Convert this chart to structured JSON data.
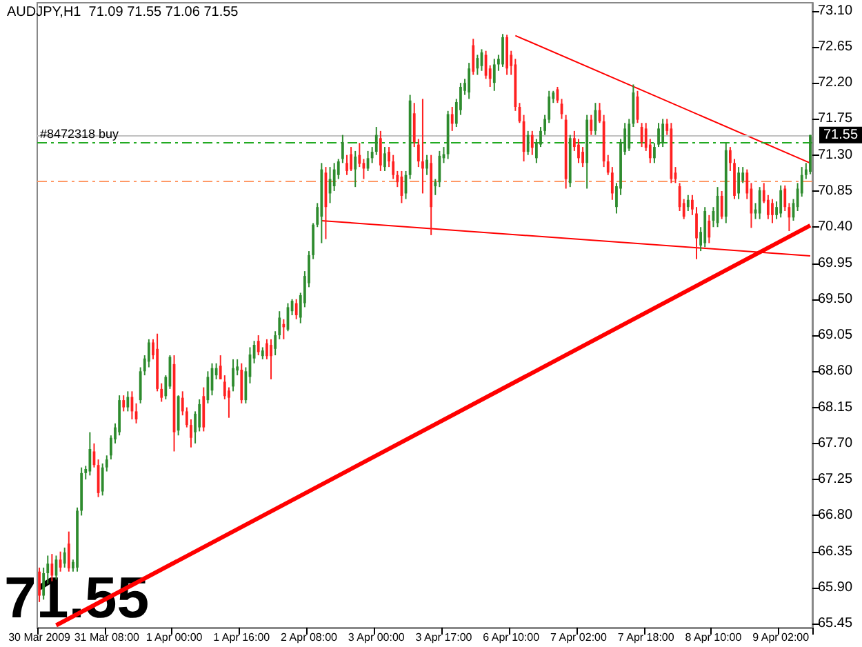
{
  "chart_data": {
    "type": "candlestick",
    "title": "AUDJPY,H1  71.09 71.55 71.06 71.55",
    "annotations": [
      "71.55"
    ],
    "categories": [
      "30 Mar 2009",
      null,
      null,
      null,
      null,
      null,
      null,
      null,
      null,
      null,
      null,
      null,
      null,
      null,
      null,
      null,
      "31 Mar 08:00",
      null,
      null,
      null,
      null,
      null,
      null,
      null,
      null,
      null,
      null,
      null,
      null,
      null,
      null,
      null,
      "1 Apr 00:00",
      null,
      null,
      null,
      null,
      null,
      null,
      null,
      null,
      null,
      null,
      null,
      null,
      null,
      null,
      null,
      "1 Apr 16:00",
      null,
      null,
      null,
      null,
      null,
      null,
      null,
      null,
      null,
      null,
      null,
      null,
      null,
      null,
      null,
      "2 Apr 08:00",
      null,
      null,
      null,
      null,
      null,
      null,
      null,
      null,
      null,
      null,
      null,
      null,
      null,
      null,
      null,
      "3 Apr 00:00",
      null,
      null,
      null,
      null,
      null,
      null,
      null,
      null,
      null,
      null,
      null,
      null,
      null,
      null,
      null,
      "3 Apr 17:00",
      null,
      null,
      null,
      null,
      null,
      null,
      null,
      null,
      null,
      null,
      null,
      null,
      null,
      null,
      null,
      "6 Apr 10:00",
      null,
      null,
      null,
      null,
      null,
      null,
      null,
      null,
      null,
      null,
      null,
      null,
      null,
      null,
      null,
      "7 Apr 02:00",
      null,
      null,
      null,
      null,
      null,
      null,
      null,
      null,
      null,
      null,
      null,
      null,
      null,
      null,
      null,
      "7 Apr 18:00",
      null,
      null,
      null,
      null,
      null,
      null,
      null,
      null,
      null,
      null,
      null,
      null,
      null,
      null,
      null,
      "8 Apr 10:00",
      null,
      null,
      null,
      null,
      null,
      null,
      null,
      null,
      null,
      null,
      null,
      null,
      null,
      null,
      null,
      "9 Apr 02:00",
      null,
      null,
      null,
      null,
      null,
      null,
      null
    ],
    "ohlc": [
      [
        66.1,
        66.15,
        65.72,
        65.8
      ],
      [
        65.8,
        66.15,
        65.75,
        66.08
      ],
      [
        66.08,
        66.3,
        65.95,
        66.2
      ],
      [
        66.2,
        66.32,
        65.98,
        66.05
      ],
      [
        66.05,
        66.3,
        66.0,
        66.25
      ],
      [
        66.25,
        66.35,
        66.1,
        66.15
      ],
      [
        66.2,
        66.4,
        66.15,
        66.34
      ],
      [
        66.45,
        66.6,
        66.1,
        66.14
      ],
      [
        66.14,
        66.25,
        66.1,
        66.22
      ],
      [
        66.15,
        66.9,
        66.1,
        66.86
      ],
      [
        66.86,
        67.4,
        66.8,
        67.33
      ],
      [
        67.33,
        67.42,
        67.25,
        67.38
      ],
      [
        67.35,
        67.84,
        67.3,
        67.63
      ],
      [
        67.6,
        67.7,
        67.4,
        67.43
      ],
      [
        67.43,
        67.5,
        67.03,
        67.08
      ],
      [
        67.1,
        67.45,
        67.05,
        67.4
      ],
      [
        67.4,
        67.55,
        67.35,
        67.5
      ],
      [
        67.55,
        67.8,
        67.5,
        67.77
      ],
      [
        67.75,
        67.95,
        67.7,
        67.9
      ],
      [
        67.84,
        68.3,
        67.8,
        68.24
      ],
      [
        68.24,
        68.3,
        68.1,
        68.15
      ],
      [
        68.15,
        68.35,
        68.1,
        68.28
      ],
      [
        68.28,
        68.35,
        68.0,
        68.1
      ],
      [
        68.1,
        68.2,
        67.95,
        68.0
      ],
      [
        68.24,
        68.65,
        68.2,
        68.6
      ],
      [
        68.6,
        68.8,
        68.55,
        68.76
      ],
      [
        68.72,
        69.0,
        68.65,
        68.96
      ],
      [
        68.96,
        69.0,
        68.75,
        68.8
      ],
      [
        68.88,
        69.07,
        68.35,
        68.38
      ],
      [
        68.38,
        68.45,
        68.22,
        68.27
      ],
      [
        68.29,
        68.55,
        68.25,
        68.53
      ],
      [
        68.41,
        68.8,
        68.38,
        68.78
      ],
      [
        68.69,
        68.8,
        67.6,
        67.84
      ],
      [
        67.86,
        68.3,
        67.8,
        68.29
      ],
      [
        68.27,
        68.35,
        68.05,
        68.1
      ],
      [
        68.1,
        68.15,
        67.9,
        67.93
      ],
      [
        67.93,
        68.0,
        67.65,
        67.77
      ],
      [
        67.84,
        68.1,
        67.7,
        68.07
      ],
      [
        67.9,
        68.25,
        67.85,
        68.19
      ],
      [
        68.29,
        68.4,
        67.85,
        67.9
      ],
      [
        68.24,
        68.6,
        68.2,
        68.53
      ],
      [
        68.36,
        68.7,
        68.3,
        68.64
      ],
      [
        68.55,
        68.7,
        68.5,
        68.64
      ],
      [
        68.67,
        68.8,
        68.5,
        68.5
      ],
      [
        68.47,
        68.55,
        68.25,
        68.29
      ],
      [
        68.36,
        68.4,
        68.02,
        68.27
      ],
      [
        68.41,
        68.75,
        68.35,
        68.64
      ],
      [
        68.61,
        68.75,
        68.55,
        68.66
      ],
      [
        68.62,
        68.7,
        68.2,
        68.24
      ],
      [
        68.24,
        68.65,
        68.2,
        68.6
      ],
      [
        68.53,
        68.9,
        68.45,
        68.81
      ],
      [
        68.76,
        68.98,
        68.7,
        68.93
      ],
      [
        68.98,
        69.05,
        68.8,
        68.84
      ],
      [
        68.79,
        68.9,
        68.75,
        68.86
      ],
      [
        68.95,
        69.0,
        68.75,
        68.79
      ],
      [
        68.93,
        69.0,
        68.5,
        68.79
      ],
      [
        68.88,
        69.1,
        68.8,
        69.05
      ],
      [
        69.05,
        69.35,
        69.0,
        69.27
      ],
      [
        69.19,
        69.25,
        69.0,
        69.15
      ],
      [
        69.12,
        69.45,
        69.1,
        69.4
      ],
      [
        69.35,
        69.5,
        69.3,
        69.48
      ],
      [
        69.45,
        69.5,
        69.25,
        69.3
      ],
      [
        69.27,
        69.58,
        69.2,
        69.55
      ],
      [
        69.45,
        69.85,
        69.4,
        69.79
      ],
      [
        69.7,
        70.1,
        69.65,
        70.05
      ],
      [
        70.05,
        70.45,
        70.0,
        70.43
      ],
      [
        70.43,
        70.7,
        70.4,
        70.65
      ],
      [
        70.53,
        71.2,
        70.2,
        71.12
      ],
      [
        71.08,
        71.15,
        70.25,
        70.65
      ],
      [
        70.82,
        71.15,
        70.7,
        71.0
      ],
      [
        70.91,
        71.2,
        70.85,
        71.12
      ],
      [
        71.05,
        71.25,
        71.0,
        71.22
      ],
      [
        71.25,
        71.55,
        71.2,
        71.46
      ],
      [
        71.2,
        71.3,
        71.05,
        71.1
      ],
      [
        71.31,
        71.4,
        71.1,
        71.12
      ],
      [
        71.12,
        71.35,
        70.9,
        71.28
      ],
      [
        71.3,
        71.45,
        71.15,
        71.19
      ],
      [
        71.2,
        71.25,
        71.0,
        71.13
      ],
      [
        71.13,
        71.35,
        71.1,
        71.26
      ],
      [
        71.26,
        71.4,
        71.2,
        71.34
      ],
      [
        71.34,
        71.65,
        71.3,
        71.55
      ],
      [
        71.51,
        71.6,
        71.1,
        71.17
      ],
      [
        71.15,
        71.4,
        71.1,
        71.32
      ],
      [
        71.34,
        71.4,
        71.15,
        71.22
      ],
      [
        71.22,
        71.3,
        71.0,
        71.05
      ],
      [
        71.05,
        71.1,
        70.9,
        70.96
      ],
      [
        71.03,
        71.1,
        70.7,
        70.79
      ],
      [
        70.82,
        71.1,
        70.75,
        71.05
      ],
      [
        71.05,
        72.05,
        71.0,
        71.98
      ],
      [
        71.82,
        71.95,
        71.4,
        71.46
      ],
      [
        71.43,
        71.5,
        71.15,
        71.22
      ],
      [
        71.22,
        72.0,
        70.82,
        71.13
      ],
      [
        71.13,
        71.3,
        71.05,
        71.24
      ],
      [
        71.2,
        71.3,
        70.3,
        70.65
      ],
      [
        70.91,
        71.0,
        70.8,
        70.96
      ],
      [
        70.96,
        71.35,
        70.9,
        71.29
      ],
      [
        71.26,
        71.4,
        71.2,
        71.31
      ],
      [
        71.31,
        71.85,
        71.25,
        71.81
      ],
      [
        71.81,
        71.9,
        71.6,
        71.69
      ],
      [
        71.69,
        72.0,
        71.65,
        71.96
      ],
      [
        71.86,
        72.2,
        71.8,
        72.15
      ],
      [
        72.1,
        72.25,
        72.05,
        72.2
      ],
      [
        72.08,
        72.45,
        72.0,
        72.38
      ],
      [
        72.67,
        72.75,
        72.3,
        72.34
      ],
      [
        72.38,
        72.55,
        72.3,
        72.51
      ],
      [
        72.41,
        72.62,
        72.35,
        72.58
      ],
      [
        72.55,
        72.6,
        72.25,
        72.29
      ],
      [
        72.38,
        72.42,
        72.15,
        72.25
      ],
      [
        72.2,
        72.5,
        72.1,
        72.43
      ],
      [
        72.43,
        72.55,
        72.35,
        72.5
      ],
      [
        72.43,
        72.81,
        72.4,
        72.77
      ],
      [
        72.77,
        72.8,
        72.3,
        72.38
      ],
      [
        72.55,
        72.6,
        72.3,
        72.41
      ],
      [
        72.43,
        72.5,
        71.85,
        71.9
      ],
      [
        71.9,
        71.95,
        71.7,
        71.72
      ],
      [
        71.72,
        71.8,
        71.22,
        71.34
      ],
      [
        71.34,
        71.6,
        71.3,
        71.55
      ],
      [
        71.55,
        71.6,
        71.3,
        71.39
      ],
      [
        71.26,
        71.5,
        71.2,
        71.45
      ],
      [
        71.43,
        71.65,
        71.4,
        71.6
      ],
      [
        71.6,
        71.8,
        71.55,
        71.75
      ],
      [
        71.74,
        72.1,
        71.7,
        72.03
      ],
      [
        72.0,
        72.1,
        71.95,
        72.08
      ],
      [
        72.12,
        72.15,
        71.95,
        71.98
      ],
      [
        71.94,
        72.0,
        71.75,
        71.81
      ],
      [
        71.74,
        71.8,
        70.88,
        71.0
      ],
      [
        70.95,
        71.55,
        70.9,
        71.51
      ],
      [
        71.51,
        71.6,
        71.35,
        71.4
      ],
      [
        71.43,
        71.5,
        71.2,
        71.26
      ],
      [
        71.34,
        71.4,
        71.15,
        71.2
      ],
      [
        71.2,
        71.8,
        70.88,
        71.74
      ],
      [
        71.74,
        71.8,
        71.55,
        71.6
      ],
      [
        71.6,
        71.95,
        71.55,
        71.86
      ],
      [
        71.86,
        71.95,
        71.7,
        71.72
      ],
      [
        71.72,
        71.8,
        71.15,
        71.22
      ],
      [
        71.22,
        71.3,
        71.05,
        71.08
      ],
      [
        71.08,
        71.15,
        70.74,
        70.82
      ],
      [
        70.65,
        70.95,
        70.57,
        70.91
      ],
      [
        70.88,
        71.5,
        70.8,
        71.46
      ],
      [
        71.34,
        71.7,
        71.3,
        71.63
      ],
      [
        71.38,
        71.75,
        71.35,
        71.69
      ],
      [
        71.69,
        72.18,
        71.65,
        72.08
      ],
      [
        72.03,
        72.1,
        71.7,
        71.74
      ],
      [
        71.65,
        71.7,
        71.4,
        71.46
      ],
      [
        71.63,
        71.7,
        71.35,
        71.39
      ],
      [
        71.43,
        71.5,
        71.2,
        71.26
      ],
      [
        71.26,
        71.45,
        71.2,
        71.4
      ],
      [
        71.43,
        71.7,
        71.4,
        71.63
      ],
      [
        71.46,
        71.75,
        71.4,
        71.69
      ],
      [
        71.69,
        71.75,
        71.55,
        71.6
      ],
      [
        71.63,
        71.7,
        70.95,
        71.0
      ],
      [
        71.08,
        71.15,
        70.95,
        71.0
      ],
      [
        70.91,
        70.95,
        70.6,
        70.65
      ],
      [
        70.7,
        70.75,
        70.5,
        70.53
      ],
      [
        70.65,
        70.8,
        70.6,
        70.74
      ],
      [
        70.74,
        70.8,
        70.55,
        70.62
      ],
      [
        70.57,
        70.65,
        70.0,
        70.26
      ],
      [
        70.17,
        70.4,
        70.1,
        70.34
      ],
      [
        70.2,
        70.65,
        70.15,
        70.6
      ],
      [
        70.48,
        70.55,
        70.2,
        70.27
      ],
      [
        70.48,
        70.65,
        70.4,
        70.6
      ],
      [
        70.45,
        70.9,
        70.4,
        70.79
      ],
      [
        70.79,
        70.85,
        70.5,
        70.53
      ],
      [
        70.53,
        71.45,
        70.45,
        71.36
      ],
      [
        71.36,
        71.4,
        71.1,
        71.2
      ],
      [
        71.2,
        71.25,
        70.75,
        70.79
      ],
      [
        70.82,
        71.15,
        70.75,
        71.08
      ],
      [
        70.98,
        71.15,
        70.95,
        71.08
      ],
      [
        71.08,
        71.12,
        70.75,
        70.82
      ],
      [
        70.88,
        70.95,
        70.39,
        70.57
      ],
      [
        70.57,
        70.7,
        70.5,
        70.62
      ],
      [
        70.57,
        70.9,
        70.5,
        70.86
      ],
      [
        70.86,
        70.95,
        70.7,
        70.72
      ],
      [
        70.74,
        70.8,
        70.5,
        70.55
      ],
      [
        70.7,
        70.75,
        70.45,
        70.55
      ],
      [
        70.55,
        70.72,
        70.5,
        70.65
      ],
      [
        70.57,
        70.92,
        70.52,
        70.86
      ],
      [
        70.88,
        70.92,
        70.6,
        70.65
      ],
      [
        70.65,
        70.7,
        70.35,
        70.52
      ],
      [
        70.52,
        70.75,
        70.48,
        70.7
      ],
      [
        70.65,
        70.95,
        70.6,
        70.88
      ],
      [
        70.82,
        71.15,
        70.78,
        71.05
      ],
      [
        71.05,
        71.2,
        71.0,
        71.12
      ],
      [
        71.09,
        71.55,
        71.06,
        71.55
      ]
    ],
    "colors": [
      "#ff2020",
      "#2e8b2e",
      "#2e8b2e",
      "#ff2020",
      "#2e8b2e",
      "#ff2020",
      "#2e8b2e",
      "#ff2020",
      "#2e8b2e",
      "#2e8b2e",
      "#2e8b2e",
      "#2e8b2e",
      "#2e8b2e",
      "#ff2020",
      "#ff2020",
      "#2e8b2e",
      "#2e8b2e",
      "#2e8b2e",
      "#2e8b2e",
      "#2e8b2e",
      "#ff2020",
      "#2e8b2e",
      "#ff2020",
      "#ff2020",
      "#2e8b2e",
      "#2e8b2e",
      "#2e8b2e",
      "#ff2020",
      "#ff2020",
      "#ff2020",
      "#2e8b2e",
      "#2e8b2e",
      "#ff2020",
      "#2e8b2e",
      "#ff2020",
      "#ff2020",
      "#ff2020",
      "#2e8b2e",
      "#2e8b2e",
      "#ff2020",
      "#2e8b2e",
      "#2e8b2e",
      "#2e8b2e",
      "#ff2020",
      "#ff2020",
      "#ff2020",
      "#2e8b2e",
      "#2e8b2e",
      "#ff2020",
      "#2e8b2e",
      "#2e8b2e",
      "#2e8b2e",
      "#ff2020",
      "#2e8b2e",
      "#ff2020",
      "#ff2020",
      "#2e8b2e",
      "#2e8b2e",
      "#ff2020",
      "#2e8b2e",
      "#2e8b2e",
      "#ff2020",
      "#2e8b2e",
      "#2e8b2e",
      "#2e8b2e",
      "#2e8b2e",
      "#2e8b2e",
      "#2e8b2e",
      "#ff2020",
      "#2e8b2e",
      "#2e8b2e",
      "#2e8b2e",
      "#2e8b2e",
      "#ff2020",
      "#ff2020",
      "#2e8b2e",
      "#ff2020",
      "#ff2020",
      "#2e8b2e",
      "#2e8b2e",
      "#2e8b2e",
      "#ff2020",
      "#2e8b2e",
      "#ff2020",
      "#ff2020",
      "#ff2020",
      "#ff2020",
      "#2e8b2e",
      "#2e8b2e",
      "#ff2020",
      "#ff2020",
      "#ff2020",
      "#2e8b2e",
      "#ff2020",
      "#2e8b2e",
      "#2e8b2e",
      "#2e8b2e",
      "#2e8b2e",
      "#ff2020",
      "#2e8b2e",
      "#2e8b2e",
      "#2e8b2e",
      "#2e8b2e",
      "#ff2020",
      "#2e8b2e",
      "#2e8b2e",
      "#ff2020",
      "#ff2020",
      "#2e8b2e",
      "#2e8b2e",
      "#2e8b2e",
      "#ff2020",
      "#ff2020",
      "#ff2020",
      "#ff2020",
      "#ff2020",
      "#2e8b2e",
      "#ff2020",
      "#2e8b2e",
      "#2e8b2e",
      "#2e8b2e",
      "#2e8b2e",
      "#2e8b2e",
      "#ff2020",
      "#ff2020",
      "#ff2020",
      "#2e8b2e",
      "#ff2020",
      "#ff2020",
      "#ff2020",
      "#2e8b2e",
      "#ff2020",
      "#2e8b2e",
      "#ff2020",
      "#ff2020",
      "#ff2020",
      "#ff2020",
      "#2e8b2e",
      "#2e8b2e",
      "#2e8b2e",
      "#2e8b2e",
      "#2e8b2e",
      "#ff2020",
      "#ff2020",
      "#ff2020",
      "#ff2020",
      "#2e8b2e",
      "#2e8b2e",
      "#2e8b2e",
      "#ff2020",
      "#ff2020",
      "#ff2020",
      "#ff2020",
      "#ff2020",
      "#2e8b2e",
      "#ff2020",
      "#ff2020",
      "#2e8b2e",
      "#2e8b2e",
      "#ff2020",
      "#2e8b2e",
      "#2e8b2e",
      "#ff2020",
      "#2e8b2e",
      "#ff2020",
      "#ff2020",
      "#2e8b2e",
      "#2e8b2e",
      "#ff2020",
      "#ff2020",
      "#2e8b2e",
      "#2e8b2e",
      "#ff2020",
      "#ff2020",
      "#ff2020",
      "#2e8b2e",
      "#2e8b2e",
      "#ff2020",
      "#ff2020",
      "#2e8b2e",
      "#2e8b2e",
      "#2e8b2e",
      "#2e8b2e",
      "#2e8b2e"
    ],
    "series": [
      {
        "type": "line",
        "color": "#ff0000",
        "values": [
          null,
          null,
          null,
          null,
          65.43,
          null,
          null,
          null,
          null,
          null,
          null,
          null,
          null,
          null,
          null,
          null,
          null,
          null,
          null,
          null,
          null,
          null,
          null,
          null,
          null,
          null,
          null,
          null,
          null,
          null,
          null,
          null,
          null,
          null,
          null,
          null,
          null,
          null,
          null,
          null,
          null,
          null,
          null,
          null,
          null,
          null,
          null,
          null,
          null,
          null,
          null,
          null,
          null,
          null,
          null,
          null,
          null,
          null,
          null,
          null,
          null,
          null,
          null,
          null,
          null,
          null,
          null,
          null,
          null,
          null,
          null,
          null,
          null,
          null,
          null,
          null,
          null,
          null,
          null,
          null,
          null,
          null,
          null,
          null,
          null,
          null,
          null,
          null,
          null,
          null,
          null,
          null,
          null,
          null,
          null,
          null,
          null,
          null,
          null,
          null,
          null,
          null,
          null,
          null,
          null,
          null,
          null,
          null,
          null,
          null,
          null,
          null,
          null,
          null,
          null,
          null,
          null,
          null,
          null,
          null,
          null,
          null,
          null,
          null,
          null,
          null,
          null,
          null,
          null,
          null,
          null,
          null,
          null,
          null,
          null,
          null,
          null,
          null,
          null,
          null,
          null,
          null,
          null,
          null,
          null,
          null,
          null,
          null,
          null,
          null,
          null,
          null,
          null,
          null,
          null,
          null,
          null,
          null,
          null,
          null,
          null,
          null,
          null,
          null,
          null,
          null,
          null,
          null,
          null,
          null,
          null,
          null,
          null,
          null,
          null,
          null,
          null,
          null,
          null,
          null,
          null,
          null,
          null,
          70.42
        ]
      },
      {
        "type": "line",
        "color": "#ff0000",
        "values": [
          null,
          null,
          null,
          null,
          null,
          null,
          null,
          null,
          null,
          null,
          null,
          null,
          null,
          null,
          null,
          null,
          null,
          null,
          null,
          null,
          null,
          null,
          null,
          null,
          null,
          null,
          null,
          null,
          null,
          null,
          null,
          null,
          null,
          null,
          null,
          null,
          null,
          null,
          null,
          null,
          null,
          null,
          null,
          null,
          null,
          null,
          null,
          null,
          null,
          null,
          null,
          null,
          null,
          null,
          null,
          null,
          null,
          null,
          null,
          null,
          null,
          null,
          null,
          null,
          null,
          null,
          null,
          null,
          null,
          null,
          null,
          null,
          null,
          null,
          null,
          null,
          null,
          null,
          null,
          null,
          null,
          null,
          null,
          null,
          null,
          null,
          null,
          null,
          null,
          null,
          null,
          null,
          null,
          null,
          null,
          null,
          null,
          null,
          null,
          null,
          null,
          null,
          null,
          null,
          null,
          null,
          null,
          null,
          null,
          null,
          null,
          null,
          null,
          72.79,
          null,
          null,
          null,
          null,
          null,
          null,
          null,
          null,
          null,
          null,
          null,
          null,
          null,
          null,
          null,
          null,
          null,
          null,
          null,
          null,
          null,
          null,
          null,
          null,
          null,
          null,
          null,
          null,
          null,
          null,
          null,
          null,
          null,
          null,
          null,
          null,
          null,
          null,
          null,
          null,
          null,
          null,
          null,
          null,
          null,
          null,
          null,
          null,
          null,
          null,
          null,
          null,
          null,
          null,
          null,
          null,
          null,
          null,
          null,
          null,
          null,
          null,
          null,
          null,
          null,
          null,
          null,
          null,
          null,
          71.2
        ]
      },
      {
        "type": "line",
        "color": "#ff0000",
        "values": [
          null,
          null,
          null,
          null,
          null,
          null,
          null,
          null,
          null,
          null,
          null,
          null,
          null,
          null,
          null,
          null,
          null,
          null,
          null,
          null,
          null,
          null,
          null,
          null,
          null,
          null,
          null,
          null,
          null,
          null,
          null,
          null,
          null,
          null,
          null,
          null,
          null,
          null,
          null,
          null,
          null,
          null,
          null,
          null,
          null,
          null,
          null,
          null,
          null,
          null,
          null,
          null,
          null,
          null,
          null,
          null,
          null,
          null,
          null,
          null,
          null,
          null,
          null,
          null,
          null,
          null,
          null,
          70.48,
          null,
          null,
          null,
          null,
          null,
          null,
          null,
          null,
          null,
          null,
          null,
          null,
          null,
          null,
          null,
          null,
          null,
          null,
          null,
          null,
          null,
          null,
          null,
          null,
          null,
          null,
          null,
          null,
          null,
          null,
          null,
          null,
          null,
          null,
          null,
          null,
          null,
          null,
          null,
          null,
          null,
          null,
          null,
          null,
          null,
          null,
          null,
          null,
          null,
          null,
          null,
          null,
          null,
          null,
          null,
          null,
          null,
          null,
          null,
          null,
          null,
          null,
          null,
          null,
          null,
          null,
          null,
          null,
          null,
          null,
          null,
          null,
          null,
          null,
          null,
          null,
          null,
          null,
          null,
          null,
          null,
          null,
          null,
          null,
          null,
          null,
          null,
          null,
          null,
          null,
          null,
          null,
          null,
          null,
          null,
          null,
          null,
          null,
          null,
          null,
          null,
          null,
          null,
          null,
          null,
          null,
          null,
          null,
          null,
          null,
          null,
          null,
          null,
          null,
          null,
          70.04
        ]
      }
    ],
    "ref_lines": [
      {
        "axis": "y",
        "value": 71.55,
        "label": "71.55",
        "color": "#c0c0c0",
        "line_style": "solid"
      },
      {
        "axis": "y",
        "value": 71.45,
        "label": "#8472318 buy",
        "color": "#22aa22",
        "line_style": "dashed"
      },
      {
        "axis": "y",
        "value": 70.98,
        "color": "#ff9966",
        "line_style": "dashed"
      }
    ],
    "ylim": [
      65.4,
      73.2
    ],
    "yticks": [
      65.45,
      {
        "value": 65.9,
        "label": "65.90"
      },
      66.35,
      {
        "value": 66.8,
        "label": "66.80"
      },
      67.25,
      {
        "value": 67.7,
        "label": "67.70"
      },
      68.15,
      {
        "value": 68.6,
        "label": "68.60"
      },
      69.05,
      {
        "value": 69.5,
        "label": "69.50"
      },
      69.95,
      {
        "value": 70.4,
        "label": "70.40"
      },
      70.85,
      {
        "value": 71.3,
        "label": "71.30"
      },
      71.75,
      {
        "value": 72.2,
        "label": "72.20"
      },
      72.65,
      {
        "value": 73.1,
        "label": "73.10"
      }
    ]
  }
}
